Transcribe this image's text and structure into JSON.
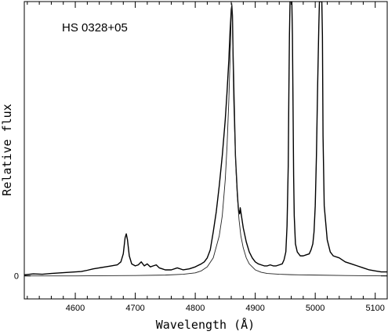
{
  "chart_data": {
    "type": "line",
    "title": "",
    "annotation": "HS 0328+05",
    "xlabel": "Wavelength (Å)",
    "ylabel": "Relative flux",
    "xlim": [
      4515,
      5120
    ],
    "ylim": [
      -0.115,
      1.37
    ],
    "x_ticks": [
      4600,
      4700,
      4800,
      4900,
      5000,
      5100
    ],
    "x_tick_labels": [
      "4600",
      "4700",
      "4800",
      "4900",
      "5000",
      "5100"
    ],
    "y_ticks": [
      0
    ],
    "y_tick_labels": [
      "0"
    ],
    "grid": false,
    "legend": "none",
    "series": [
      {
        "x": [
          4515,
          4530,
          4545,
          4560,
          4575,
          4590,
          4600,
          4610,
          4620,
          4630,
          4640,
          4650,
          4660,
          4670,
          4676,
          4680,
          4683,
          4685,
          4687,
          4690,
          4694,
          4700,
          4705,
          4710,
          4715,
          4720,
          4725,
          4730,
          4735,
          4740,
          4745,
          4750,
          4760,
          4770,
          4780,
          4790,
          4800,
          4810,
          4815,
          4820,
          4825,
          4830,
          4835,
          4840,
          4845,
          4850,
          4853,
          4856,
          4858,
          4860,
          4861,
          4862,
          4863,
          4865,
          4867,
          4870,
          4872,
          4874,
          4875,
          4877,
          4880,
          4885,
          4890,
          4895,
          4900,
          4905,
          4910,
          4915,
          4920,
          4925,
          4930,
          4935,
          4940,
          4945,
          4948,
          4951,
          4953,
          4955,
          4956,
          4957,
          4958,
          4959,
          4960,
          4961,
          4962,
          4963,
          4964,
          4965,
          4967,
          4970,
          4975,
          4980,
          4985,
          4990,
          4993,
          4996,
          4998,
          5000,
          5002,
          5004,
          5006,
          5007,
          5008,
          5009,
          5010,
          5011,
          5012,
          5013,
          5015,
          5020,
          5025,
          5030,
          5040,
          5050,
          5060,
          5070,
          5080,
          5090,
          5100,
          5110,
          5120
        ],
        "values": [
          0.005,
          0.01,
          0.008,
          0.012,
          0.015,
          0.018,
          0.02,
          0.022,
          0.028,
          0.035,
          0.04,
          0.045,
          0.05,
          0.055,
          0.07,
          0.11,
          0.19,
          0.21,
          0.18,
          0.1,
          0.06,
          0.05,
          0.055,
          0.07,
          0.05,
          0.06,
          0.045,
          0.05,
          0.055,
          0.04,
          0.035,
          0.03,
          0.03,
          0.04,
          0.03,
          0.035,
          0.045,
          0.06,
          0.07,
          0.09,
          0.13,
          0.22,
          0.32,
          0.45,
          0.6,
          0.78,
          0.92,
          1.08,
          1.22,
          1.33,
          1.35,
          1.3,
          1.12,
          0.85,
          0.6,
          0.42,
          0.33,
          0.31,
          0.34,
          0.3,
          0.24,
          0.17,
          0.12,
          0.09,
          0.07,
          0.06,
          0.055,
          0.05,
          0.05,
          0.055,
          0.05,
          0.05,
          0.055,
          0.06,
          0.08,
          0.12,
          0.25,
          0.55,
          0.9,
          1.2,
          1.37,
          1.37,
          1.37,
          1.37,
          1.2,
          0.85,
          0.5,
          0.3,
          0.16,
          0.12,
          0.1,
          0.1,
          0.105,
          0.11,
          0.13,
          0.16,
          0.22,
          0.35,
          0.6,
          0.95,
          1.25,
          1.37,
          1.37,
          1.37,
          1.37,
          1.37,
          1.2,
          0.7,
          0.35,
          0.18,
          0.12,
          0.1,
          0.09,
          0.07,
          0.06,
          0.05,
          0.04,
          0.03,
          0.025,
          0.02,
          0.02
        ]
      },
      {
        "x": [
          4515,
          4600,
          4700,
          4750,
          4780,
          4800,
          4810,
          4820,
          4830,
          4840,
          4845,
          4850,
          4853,
          4856,
          4858,
          4860,
          4861,
          4862,
          4863,
          4864,
          4866,
          4868,
          4870,
          4873,
          4876,
          4880,
          4885,
          4890,
          4900,
          4910,
          4920,
          4940,
          4960,
          5000,
          5050,
          5120
        ],
        "values": [
          0.0,
          0.0,
          0.002,
          0.004,
          0.008,
          0.015,
          0.025,
          0.045,
          0.09,
          0.2,
          0.3,
          0.48,
          0.65,
          0.88,
          1.08,
          1.3,
          1.36,
          1.25,
          1.05,
          0.88,
          0.68,
          0.52,
          0.4,
          0.28,
          0.2,
          0.14,
          0.09,
          0.06,
          0.03,
          0.018,
          0.012,
          0.008,
          0.006,
          0.004,
          0.002,
          0.0
        ]
      }
    ]
  }
}
